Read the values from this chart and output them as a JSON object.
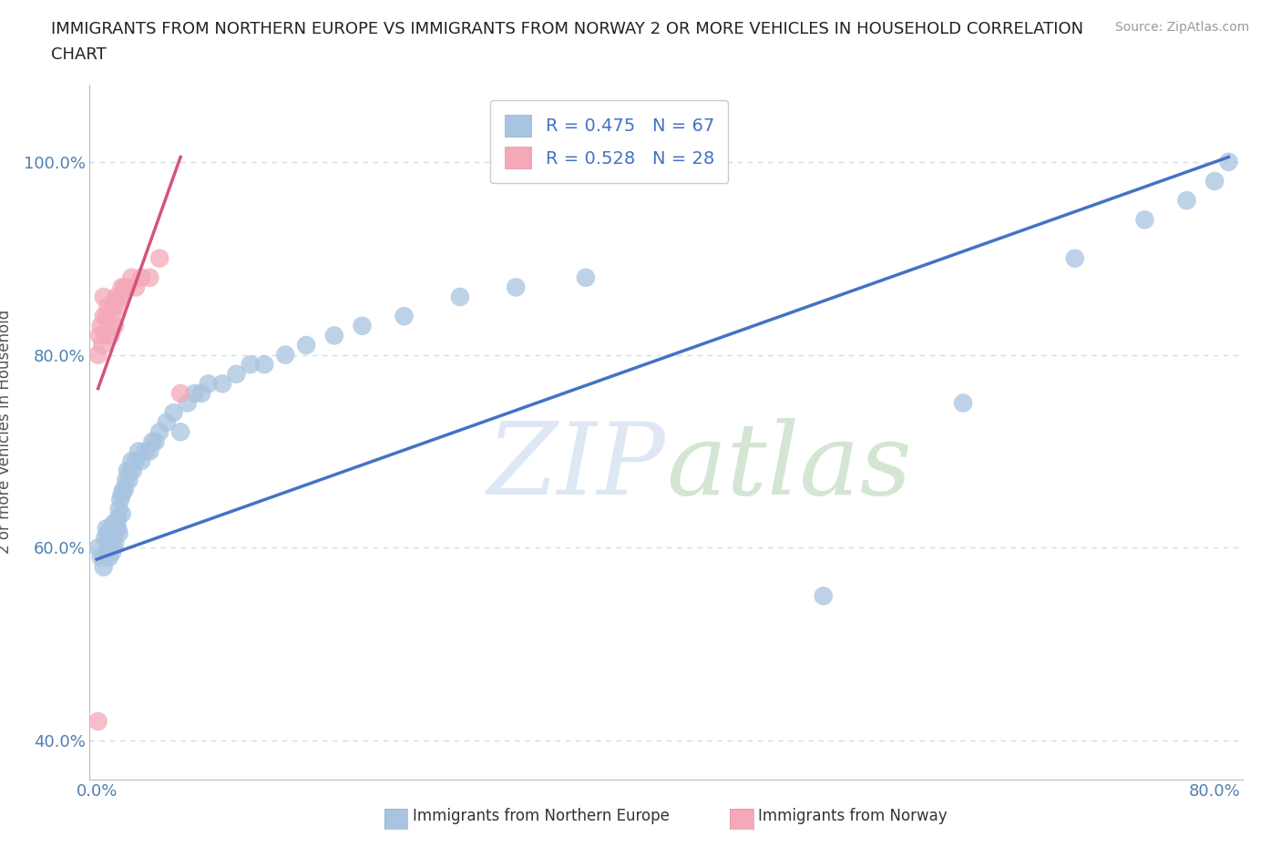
{
  "title_line1": "IMMIGRANTS FROM NORTHERN EUROPE VS IMMIGRANTS FROM NORWAY 2 OR MORE VEHICLES IN HOUSEHOLD CORRELATION",
  "title_line2": "CHART",
  "source": "Source: ZipAtlas.com",
  "ylabel": "2 or more Vehicles in Household",
  "xlim": [
    -0.005,
    0.82
  ],
  "ylim": [
    0.36,
    1.08
  ],
  "xticks": [
    0.0,
    0.1,
    0.2,
    0.3,
    0.4,
    0.5,
    0.6,
    0.7,
    0.8
  ],
  "xticklabels_show": {
    "0.0": "0.0%",
    "0.8": "80.0%"
  },
  "yticks": [
    0.4,
    0.6,
    0.8,
    1.0
  ],
  "yticklabels": [
    "40.0%",
    "60.0%",
    "80.0%",
    "100.0%"
  ],
  "blue_R": 0.475,
  "blue_N": 67,
  "pink_R": 0.528,
  "pink_N": 28,
  "blue_color": "#a8c4e0",
  "pink_color": "#f4a8b8",
  "blue_line_color": "#4472c4",
  "pink_line_color": "#d4547a",
  "legend_label_blue": "Immigrants from Northern Europe",
  "legend_label_pink": "Immigrants from Norway",
  "grid_color": "#d0dcea",
  "blue_scatter_x": [
    0.001,
    0.003,
    0.005,
    0.006,
    0.007,
    0.008,
    0.008,
    0.009,
    0.009,
    0.01,
    0.01,
    0.011,
    0.011,
    0.012,
    0.012,
    0.013,
    0.013,
    0.014,
    0.015,
    0.015,
    0.016,
    0.016,
    0.017,
    0.018,
    0.018,
    0.019,
    0.02,
    0.021,
    0.022,
    0.023,
    0.024,
    0.025,
    0.026,
    0.028,
    0.03,
    0.032,
    0.035,
    0.038,
    0.04,
    0.042,
    0.045,
    0.05,
    0.055,
    0.06,
    0.065,
    0.07,
    0.075,
    0.08,
    0.09,
    0.1,
    0.11,
    0.12,
    0.135,
    0.15,
    0.17,
    0.19,
    0.22,
    0.26,
    0.3,
    0.35,
    0.52,
    0.62,
    0.7,
    0.75,
    0.78,
    0.8,
    0.81
  ],
  "blue_scatter_y": [
    0.6,
    0.59,
    0.58,
    0.61,
    0.62,
    0.6,
    0.615,
    0.59,
    0.605,
    0.6,
    0.62,
    0.595,
    0.61,
    0.625,
    0.6,
    0.615,
    0.605,
    0.625,
    0.62,
    0.63,
    0.64,
    0.615,
    0.65,
    0.655,
    0.635,
    0.66,
    0.66,
    0.67,
    0.68,
    0.67,
    0.68,
    0.69,
    0.68,
    0.69,
    0.7,
    0.69,
    0.7,
    0.7,
    0.71,
    0.71,
    0.72,
    0.73,
    0.74,
    0.72,
    0.75,
    0.76,
    0.76,
    0.77,
    0.77,
    0.78,
    0.79,
    0.79,
    0.8,
    0.81,
    0.82,
    0.83,
    0.84,
    0.86,
    0.87,
    0.88,
    0.55,
    0.75,
    0.9,
    0.94,
    0.96,
    0.98,
    1.0
  ],
  "pink_scatter_x": [
    0.001,
    0.002,
    0.003,
    0.004,
    0.005,
    0.005,
    0.006,
    0.007,
    0.008,
    0.009,
    0.01,
    0.011,
    0.012,
    0.013,
    0.014,
    0.015,
    0.016,
    0.017,
    0.018,
    0.02,
    0.022,
    0.025,
    0.028,
    0.032,
    0.038,
    0.045,
    0.06,
    0.001
  ],
  "pink_scatter_y": [
    0.8,
    0.82,
    0.83,
    0.81,
    0.84,
    0.86,
    0.82,
    0.84,
    0.85,
    0.83,
    0.82,
    0.84,
    0.85,
    0.83,
    0.86,
    0.85,
    0.86,
    0.86,
    0.87,
    0.87,
    0.87,
    0.88,
    0.87,
    0.88,
    0.88,
    0.9,
    0.76,
    0.42
  ],
  "blue_line_x": [
    0.0,
    0.81
  ],
  "blue_line_y": [
    0.588,
    1.005
  ],
  "pink_line_x": [
    0.001,
    0.06
  ],
  "pink_line_y": [
    0.765,
    1.005
  ]
}
